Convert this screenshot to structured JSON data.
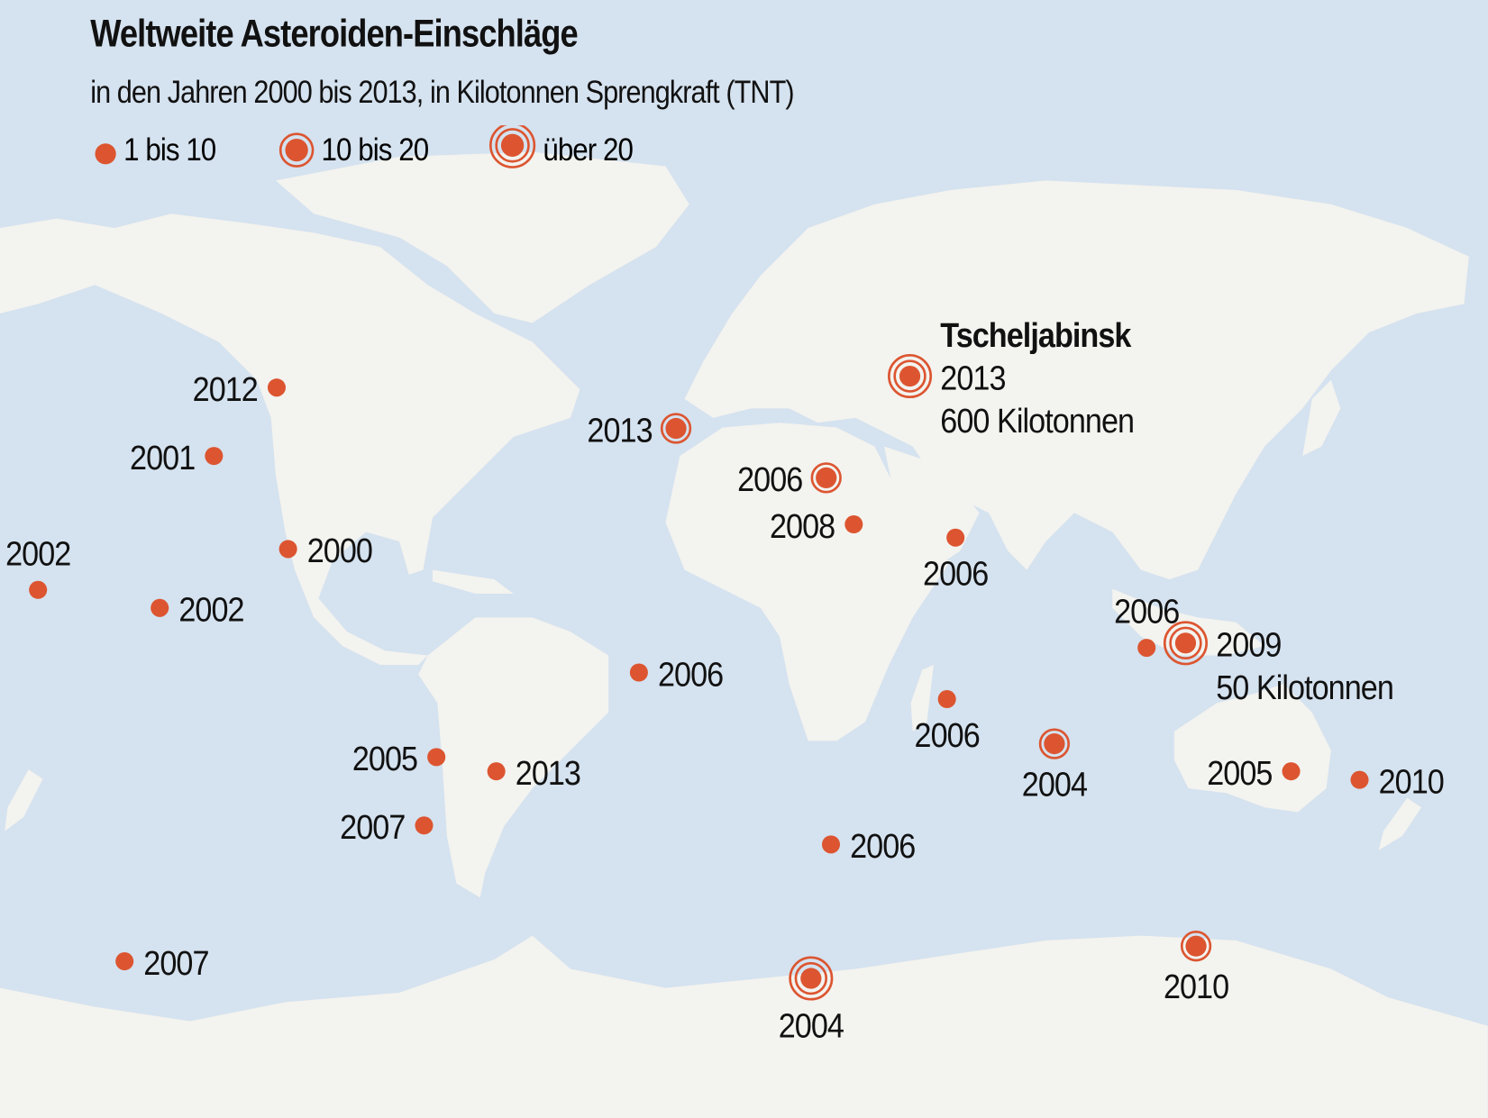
{
  "title": "Weltweite Asteroiden-Einschläge",
  "subtitle": "in den Jahren 2000 bis 2013, in Kilotonnen Sprengkraft (TNT)",
  "legend": [
    {
      "label": "1 bis 10",
      "size_class": "small"
    },
    {
      "label": "10 bis 20",
      "size_class": "medium"
    },
    {
      "label": "über 20",
      "size_class": "large"
    }
  ],
  "colors": {
    "ocean": "#d5e2ef",
    "land": "#f3f3ef",
    "marker": "#dc5530"
  },
  "markers": [
    {
      "year": "2012",
      "size_class": "small",
      "label_side": "left"
    },
    {
      "year": "2001",
      "size_class": "small",
      "label_side": "left"
    },
    {
      "year": "2002",
      "size_class": "small",
      "label_side": "above"
    },
    {
      "year": "2000",
      "size_class": "small",
      "label_side": "right"
    },
    {
      "year": "2002",
      "size_class": "small",
      "label_side": "right"
    },
    {
      "year": "2013",
      "size_class": "medium",
      "label_side": "left"
    },
    {
      "year": "2006",
      "size_class": "medium",
      "label_side": "left"
    },
    {
      "year": "2008",
      "size_class": "small",
      "label_side": "left"
    },
    {
      "year": "2006",
      "size_class": "small",
      "label_side": "below"
    },
    {
      "year": "2013",
      "size_class": "large",
      "label_side": "right",
      "place": "Tscheljabinsk",
      "note": "600 Kilotonnen"
    },
    {
      "year": "2006",
      "size_class": "small",
      "label_side": "right"
    },
    {
      "year": "2006",
      "size_class": "small",
      "label_side": "below"
    },
    {
      "year": "2006",
      "size_class": "small",
      "label_side": "above"
    },
    {
      "year": "2009",
      "size_class": "large",
      "label_side": "right",
      "note": "50 Kilotonnen"
    },
    {
      "year": "2004",
      "size_class": "medium",
      "label_side": "below"
    },
    {
      "year": "2005",
      "size_class": "small",
      "label_side": "left"
    },
    {
      "year": "2010",
      "size_class": "small",
      "label_side": "right"
    },
    {
      "year": "2005",
      "size_class": "small",
      "label_side": "left"
    },
    {
      "year": "2013",
      "size_class": "small",
      "label_side": "right"
    },
    {
      "year": "2007",
      "size_class": "small",
      "label_side": "left"
    },
    {
      "year": "2006",
      "size_class": "small",
      "label_side": "right"
    },
    {
      "year": "2007",
      "size_class": "small",
      "label_side": "right"
    },
    {
      "year": "2004",
      "size_class": "large",
      "label_side": "below"
    },
    {
      "year": "2010",
      "size_class": "medium",
      "label_side": "below"
    }
  ]
}
